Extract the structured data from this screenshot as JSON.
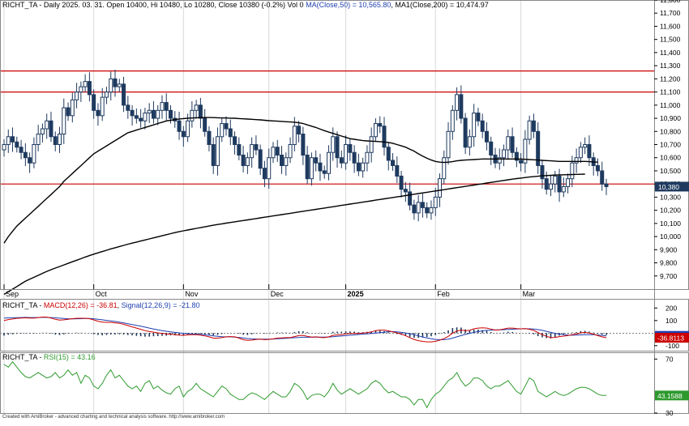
{
  "footer": "Created with AmiBroker - advanced charting and technical analysis software. http://www.amibroker.com",
  "colors": {
    "candle": "#1f3a5f",
    "ma": "#000000",
    "hline": "#cc0000",
    "macd": "#cc0000",
    "signal": "#1e3fb0",
    "hist": "#1f3a5f",
    "rsi": "#2e9a2e",
    "tag_price": "#1f3a5f",
    "tag_signal": "#1e3fb0",
    "tag_macd": "#cc0000",
    "tag_rsi": "#2e9a2e",
    "grid": "#d8d8d8"
  },
  "chart_data": [
    {
      "type": "candlestick",
      "title_parts": {
        "ticker": "RICHT_TA",
        "info": " - Daily 2025. 03. 31. Open 10400, Hi 10480, Lo 10280, Close 10380 (-0.2%) Vol 0 ",
        "ma50": "MA(Close,50) = 10,565.80",
        "sep": ", ",
        "ma200": "MA1(Close,200) = 10,474.97"
      },
      "last_value_label": "10,380",
      "ylim": [
        9600,
        11800
      ],
      "yticks": [
        9700,
        9800,
        9900,
        10000,
        10100,
        10200,
        10300,
        10400,
        10500,
        10600,
        10700,
        10800,
        10900,
        11000,
        11100,
        11200,
        11300,
        11400,
        11500,
        11600,
        11700,
        11800
      ],
      "ytick_labels": [
        "9,700",
        "9,800",
        "9,900",
        "10,000",
        "10,100",
        "10,200",
        "10,300",
        "10,400",
        "10,500",
        "10,600",
        "10,700",
        "10,800",
        "10,900",
        "11,000",
        "11,100",
        "11,200",
        "11,300",
        "11,400",
        "11,500",
        "11,600",
        "11,700",
        "11,800"
      ],
      "x_month_labels": [
        {
          "label": "Sep",
          "bar": 0,
          "bold": false
        },
        {
          "label": "Oct",
          "bar": 21,
          "bold": false
        },
        {
          "label": "Nov",
          "bar": 42,
          "bold": false
        },
        {
          "label": "Dec",
          "bar": 62,
          "bold": false
        },
        {
          "label": "2025",
          "bar": 80,
          "bold": true
        },
        {
          "label": "Feb",
          "bar": 101,
          "bold": false
        },
        {
          "label": "Mar",
          "bar": 121,
          "bold": false
        }
      ],
      "horizontal_lines": [
        11260,
        11100,
        10400
      ],
      "closes": [
        10700,
        10760,
        10720,
        10680,
        10640,
        10600,
        10560,
        10700,
        10780,
        10820,
        10880,
        10760,
        10700,
        10780,
        10980,
        10920,
        11040,
        11100,
        11140,
        11180,
        11080,
        10960,
        10920,
        11060,
        11100,
        11200,
        11140,
        11160,
        11000,
        10960,
        10920,
        10900,
        10880,
        10940,
        10960,
        10900,
        10960,
        11020,
        10960,
        10900,
        10880,
        10800,
        10760,
        10880,
        10960,
        11000,
        10900,
        10800,
        10700,
        10540,
        10760,
        10860,
        10820,
        10760,
        10700,
        10620,
        10540,
        10600,
        10700,
        10660,
        10520,
        10440,
        10600,
        10680,
        10620,
        10540,
        10600,
        10700,
        10840,
        10780,
        10620,
        10440,
        10600,
        10560,
        10500,
        10480,
        10640,
        10760,
        10600,
        10560,
        10700,
        10640,
        10560,
        10500,
        10560,
        10640,
        10760,
        10860,
        10840,
        10680,
        10580,
        10540,
        10460,
        10360,
        10340,
        10240,
        10180,
        10260,
        10220,
        10180,
        10220,
        10300,
        10440,
        10600,
        10800,
        10960,
        11080,
        10900,
        10680,
        10760,
        10940,
        10880,
        10800,
        10720,
        10620,
        10560,
        10600,
        10660,
        10760,
        10640,
        10580,
        10560,
        10740,
        10880,
        10800,
        10540,
        10440,
        10360,
        10400,
        10460,
        10340,
        10380,
        10440,
        10560,
        10600,
        10680,
        10700,
        10600,
        10540,
        10500,
        10400,
        10380
      ],
      "ma50": [
        9950,
        10000,
        10040,
        10080,
        10110,
        10140,
        10170,
        10200,
        10230,
        10260,
        10290,
        10320,
        10350,
        10380,
        10420,
        10450,
        10480,
        10510,
        10540,
        10570,
        10600,
        10630,
        10650,
        10670,
        10690,
        10710,
        10730,
        10750,
        10770,
        10790,
        10800,
        10810,
        10820,
        10830,
        10840,
        10850,
        10860,
        10870,
        10880,
        10885,
        10890,
        10895,
        10898,
        10900,
        10902,
        10904,
        10905,
        10906,
        10906,
        10905,
        10904,
        10903,
        10902,
        10901,
        10900,
        10898,
        10896,
        10894,
        10892,
        10890,
        10888,
        10885,
        10882,
        10880,
        10878,
        10876,
        10874,
        10872,
        10870,
        10866,
        10860,
        10850,
        10840,
        10830,
        10818,
        10806,
        10795,
        10785,
        10775,
        10765,
        10755,
        10745,
        10740,
        10735,
        10730,
        10728,
        10726,
        10724,
        10722,
        10720,
        10716,
        10710,
        10700,
        10690,
        10680,
        10665,
        10650,
        10630,
        10612,
        10596,
        10582,
        10572,
        10566,
        10564,
        10566,
        10570,
        10576,
        10580,
        10582,
        10584,
        10586,
        10588,
        10590,
        10590,
        10590,
        10590,
        10590,
        10590,
        10590,
        10590,
        10590,
        10590,
        10588,
        10586,
        10584,
        10582,
        10580,
        10578,
        10576,
        10574,
        10572,
        10572,
        10572,
        10572,
        10572,
        10572,
        10572,
        10570,
        10568,
        10566
      ],
      "ma200": [
        9560,
        9580,
        9600,
        9620,
        9640,
        9660,
        9675,
        9690,
        9705,
        9720,
        9735,
        9748,
        9760,
        9772,
        9784,
        9796,
        9808,
        9820,
        9832,
        9844,
        9855,
        9866,
        9876,
        9886,
        9896,
        9906,
        9915,
        9924,
        9933,
        9942,
        9950,
        9958,
        9966,
        9974,
        9982,
        9990,
        9998,
        10006,
        10014,
        10022,
        10030,
        10037,
        10044,
        10050,
        10056,
        10062,
        10068,
        10074,
        10080,
        10086,
        10092,
        10097,
        10102,
        10107,
        10112,
        10117,
        10122,
        10127,
        10132,
        10137,
        10142,
        10147,
        10152,
        10157,
        10162,
        10167,
        10172,
        10177,
        10182,
        10187,
        10192,
        10197,
        10202,
        10207,
        10212,
        10217,
        10222,
        10227,
        10232,
        10237,
        10242,
        10247,
        10252,
        10257,
        10262,
        10267,
        10272,
        10277,
        10282,
        10287,
        10292,
        10297,
        10302,
        10307,
        10312,
        10317,
        10322,
        10327,
        10332,
        10337,
        10342,
        10347,
        10352,
        10357,
        10362,
        10367,
        10372,
        10377,
        10382,
        10387,
        10392,
        10397,
        10402,
        10407,
        10412,
        10417,
        10422,
        10427,
        10432,
        10437,
        10441,
        10445,
        10449,
        10453,
        10456,
        10459,
        10462,
        10464,
        10466,
        10468,
        10469,
        10470,
        10471,
        10472,
        10473,
        10474,
        10475
      ]
    },
    {
      "type": "line",
      "title_parts": {
        "ticker": "RICHT_TA",
        "dash": " - ",
        "macd": "MACD(12,26) = -36.81",
        "sep": ", ",
        "signal": "Signal(12,26,9) = -21.80"
      },
      "ylim": [
        -140,
        260
      ],
      "yticks": [
        200,
        100,
        -100
      ],
      "ytick_labels": [
        "200",
        "100",
        "-100"
      ],
      "signal_label": "-21.8043",
      "macd_label": "-36.8113",
      "macd": [
        100,
        108,
        112,
        118,
        120,
        122,
        120,
        120,
        124,
        128,
        128,
        120,
        110,
        104,
        106,
        110,
        115,
        118,
        118,
        118,
        115,
        105,
        95,
        88,
        86,
        86,
        82,
        78,
        70,
        60,
        50,
        40,
        30,
        20,
        12,
        8,
        2,
        -2,
        -6,
        -8,
        -12,
        -16,
        -18,
        -14,
        -12,
        -12,
        -16,
        -22,
        -30,
        -40,
        -40,
        -36,
        -30,
        -28,
        -30,
        -40,
        -52,
        -58,
        -56,
        -50,
        -48,
        -52,
        -50,
        -46,
        -40,
        -38,
        -36,
        -36,
        -28,
        -20,
        -18,
        -26,
        -32,
        -30,
        -34,
        -36,
        -30,
        -18,
        -14,
        -12,
        -6,
        -4,
        -2,
        -4,
        0,
        4,
        10,
        20,
        24,
        24,
        18,
        10,
        2,
        -8,
        -20,
        -36,
        -50,
        -60,
        -66,
        -70,
        -70,
        -66,
        -56,
        -44,
        -26,
        0,
        16,
        24,
        20,
        22,
        34,
        40,
        42,
        40,
        32,
        24,
        26,
        32,
        40,
        40,
        36,
        34,
        36,
        30,
        22,
        4,
        -12,
        -26,
        -36,
        -34,
        -28,
        -24,
        -20,
        -12,
        -8,
        2,
        6,
        0,
        -8,
        -20,
        -30,
        -37
      ],
      "signal": [
        120,
        121,
        122,
        123,
        124,
        125,
        124,
        124,
        124,
        125,
        125,
        124,
        122,
        119,
        116,
        114,
        113,
        114,
        115,
        116,
        116,
        114,
        110,
        106,
        101,
        97,
        93,
        88,
        82,
        75,
        68,
        62,
        55,
        48,
        40,
        33,
        26,
        20,
        15,
        10,
        6,
        2,
        -2,
        -4,
        -6,
        -8,
        -10,
        -13,
        -17,
        -22,
        -26,
        -29,
        -30,
        -30,
        -32,
        -35,
        -39,
        -43,
        -46,
        -47,
        -48,
        -48,
        -48,
        -47,
        -45,
        -43,
        -41,
        -39,
        -37,
        -35,
        -33,
        -33,
        -33,
        -32,
        -32,
        -32,
        -31,
        -29,
        -26,
        -23,
        -20,
        -17,
        -14,
        -11,
        -8,
        -6,
        -3,
        0,
        4,
        8,
        11,
        12,
        10,
        6,
        1,
        -5,
        -13,
        -22,
        -31,
        -39,
        -45,
        -50,
        -52,
        -52,
        -48,
        -40,
        -30,
        -20,
        -10,
        -2,
        6,
        12,
        18,
        22,
        24,
        25,
        26,
        27,
        29,
        31,
        33,
        34,
        35,
        34,
        32,
        28,
        22,
        14,
        6,
        -2,
        -8,
        -13,
        -16,
        -17,
        -16,
        -14,
        -12,
        -12,
        -13,
        -15,
        -18,
        -21.8
      ]
    },
    {
      "type": "line",
      "title_parts": {
        "ticker": "RICHT_TA",
        "dash": " - ",
        "rsi": "RSI(15) = 43.16"
      },
      "ylim": [
        30,
        75
      ],
      "yticks": [
        70,
        30
      ],
      "ytick_labels": [
        "70",
        "30"
      ],
      "value_label": "43.1588",
      "rsi": [
        66,
        64,
        68,
        64,
        60,
        57,
        56,
        58,
        60,
        58,
        56,
        57,
        60,
        56,
        58,
        62,
        58,
        60,
        52,
        58,
        56,
        50,
        48,
        52,
        58,
        62,
        56,
        58,
        54,
        50,
        48,
        50,
        46,
        52,
        54,
        48,
        50,
        47,
        45,
        44,
        48,
        50,
        42,
        46,
        48,
        52,
        48,
        46,
        44,
        42,
        46,
        50,
        48,
        44,
        42,
        40,
        40,
        43,
        45,
        44,
        42,
        40,
        43,
        46,
        44,
        42,
        42,
        46,
        52,
        50,
        46,
        40,
        43,
        44,
        44,
        42,
        46,
        52,
        47,
        44,
        46,
        48,
        46,
        44,
        46,
        48,
        52,
        54,
        52,
        48,
        45,
        46,
        44,
        42,
        42,
        40,
        36,
        40,
        40,
        34,
        40,
        44,
        46,
        50,
        54,
        56,
        60,
        54,
        50,
        52,
        56,
        56,
        54,
        50,
        48,
        50,
        50,
        52,
        54,
        50,
        46,
        44,
        50,
        56,
        54,
        46,
        44,
        42,
        44,
        46,
        44,
        43,
        44,
        46,
        48,
        49,
        49,
        48,
        46,
        44,
        43,
        43
      ]
    }
  ]
}
